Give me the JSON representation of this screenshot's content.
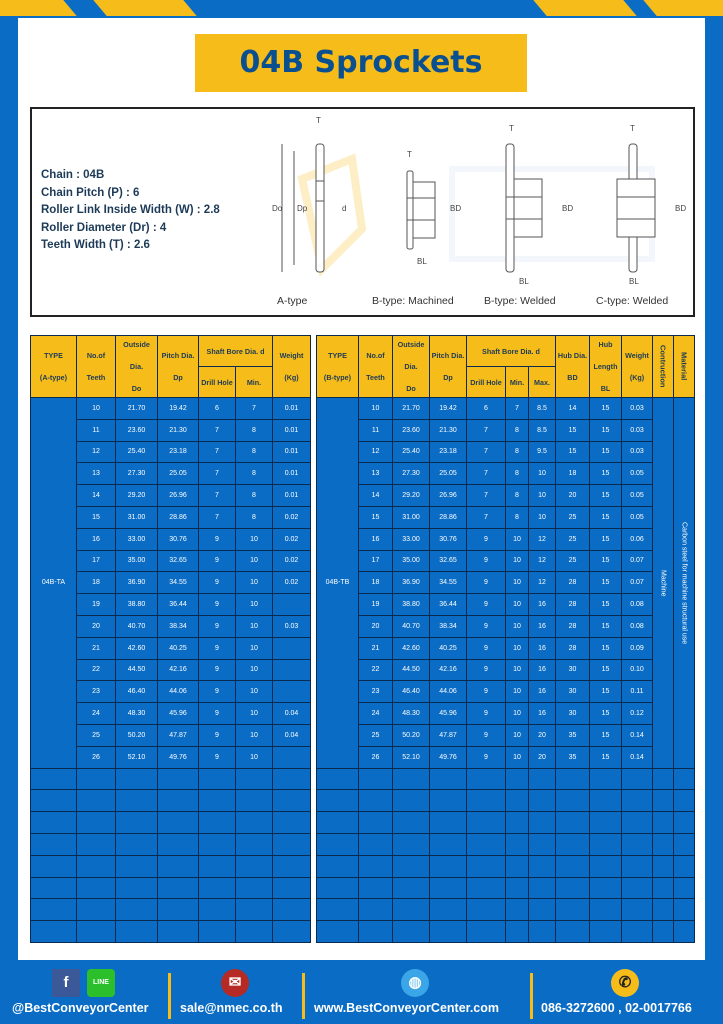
{
  "title": "04B Sprockets",
  "specs": [
    "Chain  : 04B",
    "Chain Pitch (P)  :  6",
    "Roller Link Inside Width (W)  :  2.8",
    "Roller Diameter (Dr)  : 4",
    "Teeth Width (T)  :  2.6"
  ],
  "diagram": {
    "captions": [
      "A-type",
      "B-type: Machined",
      "B-type: Welded",
      "C-type: Welded"
    ],
    "labels": {
      "t": "T",
      "do": "Do",
      "dp": "Dp",
      "d": "d",
      "bd": "BD",
      "bl": "BL"
    },
    "watermark": "BEST CONVEYOR CENTER"
  },
  "table_a": {
    "headers": {
      "type": "TYPE",
      "type_sub": "(A-type)",
      "teeth": "No.of",
      "teeth_sub": "Teeth",
      "do": "Outside",
      "do_sub": "Dia.",
      "do_sub2": "Do",
      "dp": "Pitch Dia.",
      "dp_sub": "Dp",
      "bore": "Shaft Bore Dia. d",
      "drill": "Drill Hole",
      "min": "Min.",
      "weight": "Weight",
      "weight_sub": "(Kg)"
    },
    "type_value": "04B-TA",
    "rows": [
      [
        "10",
        "21.70",
        "19.42",
        "6",
        "7",
        "0.01"
      ],
      [
        "11",
        "23.60",
        "21.30",
        "7",
        "8",
        "0.01"
      ],
      [
        "12",
        "25.40",
        "23.18",
        "7",
        "8",
        "0.01"
      ],
      [
        "13",
        "27.30",
        "25.05",
        "7",
        "8",
        "0.01"
      ],
      [
        "14",
        "29.20",
        "26.96",
        "7",
        "8",
        "0.01"
      ],
      [
        "15",
        "31.00",
        "28.86",
        "7",
        "8",
        "0.02"
      ],
      [
        "16",
        "33.00",
        "30.76",
        "9",
        "10",
        "0.02"
      ],
      [
        "17",
        "35.00",
        "32.65",
        "9",
        "10",
        "0.02"
      ],
      [
        "18",
        "36.90",
        "34.55",
        "9",
        "10",
        "0.02"
      ],
      [
        "19",
        "38.80",
        "36.44",
        "9",
        "10",
        ""
      ],
      [
        "20",
        "40.70",
        "38.34",
        "9",
        "10",
        "0.03"
      ],
      [
        "21",
        "42.60",
        "40.25",
        "9",
        "10",
        ""
      ],
      [
        "22",
        "44.50",
        "42.16",
        "9",
        "10",
        ""
      ],
      [
        "23",
        "46.40",
        "44.06",
        "9",
        "10",
        ""
      ],
      [
        "24",
        "48.30",
        "45.96",
        "9",
        "10",
        "0.04"
      ],
      [
        "25",
        "50.20",
        "47.87",
        "9",
        "10",
        "0.04"
      ],
      [
        "26",
        "52.10",
        "49.76",
        "9",
        "10",
        ""
      ]
    ]
  },
  "table_b": {
    "headers": {
      "type": "TYPE",
      "type_sub": "(B-type)",
      "teeth": "No.of",
      "teeth_sub": "Teeth",
      "do": "Outside",
      "do_sub": "Dia.",
      "do_sub2": "Do",
      "dp": "Pitch Dia.",
      "dp_sub": "Dp",
      "bore": "Shaft Bore Dia. d",
      "drill": "Drill Hole",
      "min": "Min.",
      "max": "Max.",
      "bd": "Hub Dia.",
      "bd_sub": "BD",
      "bl": "Hub",
      "bl_sub": "Length",
      "bl_sub2": "BL",
      "weight": "Weight",
      "weight_sub": "(Kg)",
      "construction": "Contruction",
      "material": "Material"
    },
    "type_value": "04B-TB",
    "construction_value": "Machine",
    "material_value": "Carbon steel for machine structural use",
    "rows": [
      [
        "10",
        "21.70",
        "19.42",
        "6",
        "7",
        "8.5",
        "14",
        "15",
        "0.03"
      ],
      [
        "11",
        "23.60",
        "21.30",
        "7",
        "8",
        "8.5",
        "15",
        "15",
        "0.03"
      ],
      [
        "12",
        "25.40",
        "23.18",
        "7",
        "8",
        "9.5",
        "15",
        "15",
        "0.03"
      ],
      [
        "13",
        "27.30",
        "25.05",
        "7",
        "8",
        "10",
        "18",
        "15",
        "0.05"
      ],
      [
        "14",
        "29.20",
        "26.96",
        "7",
        "8",
        "10",
        "20",
        "15",
        "0.05"
      ],
      [
        "15",
        "31.00",
        "28.86",
        "7",
        "8",
        "10",
        "25",
        "15",
        "0.05"
      ],
      [
        "16",
        "33.00",
        "30.76",
        "9",
        "10",
        "12",
        "25",
        "15",
        "0.06"
      ],
      [
        "17",
        "35.00",
        "32.65",
        "9",
        "10",
        "12",
        "25",
        "15",
        "0.07"
      ],
      [
        "18",
        "36.90",
        "34.55",
        "9",
        "10",
        "12",
        "28",
        "15",
        "0.07"
      ],
      [
        "19",
        "38.80",
        "36.44",
        "9",
        "10",
        "16",
        "28",
        "15",
        "0.08"
      ],
      [
        "20",
        "40.70",
        "38.34",
        "9",
        "10",
        "16",
        "28",
        "15",
        "0.08"
      ],
      [
        "21",
        "42.60",
        "40.25",
        "9",
        "10",
        "16",
        "28",
        "15",
        "0.09"
      ],
      [
        "22",
        "44.50",
        "42.16",
        "9",
        "10",
        "16",
        "30",
        "15",
        "0.10"
      ],
      [
        "23",
        "46.40",
        "44.06",
        "9",
        "10",
        "16",
        "30",
        "15",
        "0.11"
      ],
      [
        "24",
        "48.30",
        "45.96",
        "9",
        "10",
        "16",
        "30",
        "15",
        "0.12"
      ],
      [
        "25",
        "50.20",
        "47.87",
        "9",
        "10",
        "20",
        "35",
        "15",
        "0.14"
      ],
      [
        "26",
        "52.10",
        "49.76",
        "9",
        "10",
        "20",
        "35",
        "15",
        "0.14"
      ]
    ]
  },
  "footer": {
    "social": "@BestConveyorCenter",
    "line_label": "LINE",
    "email": "sale@nmec.co.th",
    "website": "www.BestConveyorCenter.com",
    "phone": "086-3272600 , 02-0017766"
  },
  "colors": {
    "blue": "#0a6cc4",
    "yellow": "#f6bd1a",
    "navy": "#0a4f8f"
  }
}
